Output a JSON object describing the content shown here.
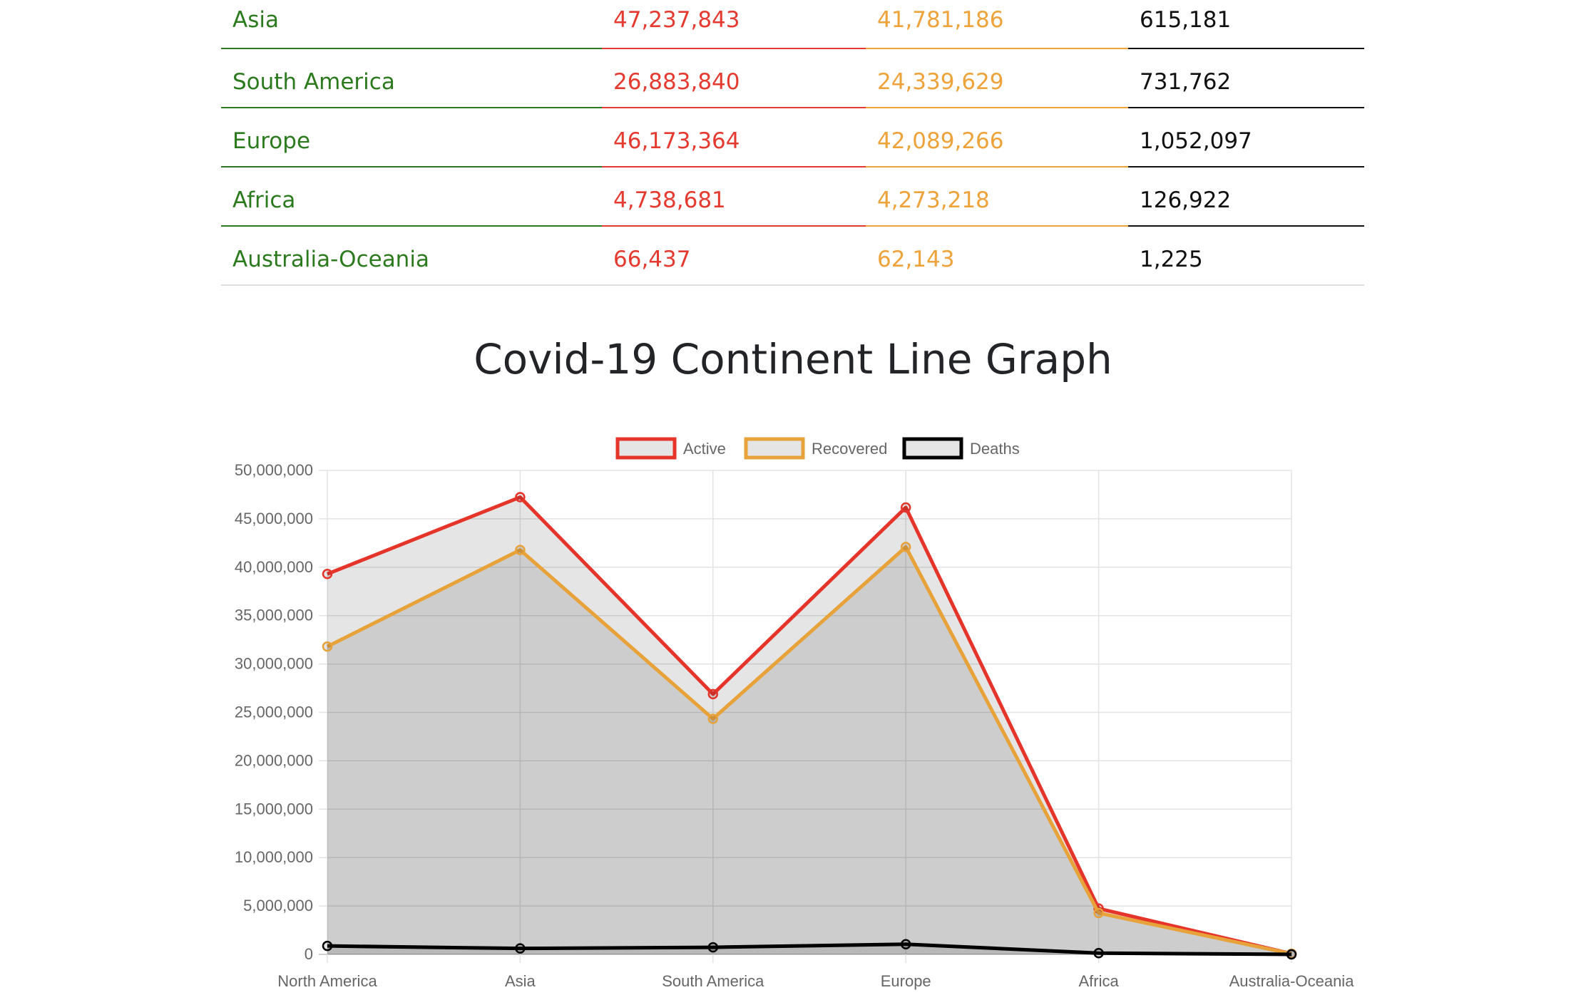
{
  "table": {
    "rows": [
      {
        "continent": "Asia",
        "active": "47,237,843",
        "recovered": "41,781,186",
        "deaths": "615,181"
      },
      {
        "continent": "South America",
        "active": "26,883,840",
        "recovered": "24,339,629",
        "deaths": "731,762"
      },
      {
        "continent": "Europe",
        "active": "46,173,364",
        "recovered": "42,089,266",
        "deaths": "1,052,097"
      },
      {
        "continent": "Africa",
        "active": "4,738,681",
        "recovered": "4,273,218",
        "deaths": "126,922"
      },
      {
        "continent": "Australia-Oceania",
        "active": "66,437",
        "recovered": "62,143",
        "deaths": "1,225"
      }
    ]
  },
  "chart_data": {
    "type": "line",
    "title": "Covid-19 Continent Line Graph",
    "categories": [
      "North America",
      "Asia",
      "South America",
      "Europe",
      "Africa",
      "Australia-Oceania"
    ],
    "series": [
      {
        "name": "Active",
        "color": "#e5352b",
        "values": [
          39300000,
          47237843,
          26883840,
          46173364,
          4738681,
          66437
        ]
      },
      {
        "name": "Recovered",
        "color": "#e8a23a",
        "values": [
          31800000,
          41781186,
          24339629,
          42089266,
          4273218,
          62143
        ]
      },
      {
        "name": "Deaths",
        "color": "#000000",
        "values": [
          870000,
          615181,
          731762,
          1052097,
          126922,
          1225
        ]
      }
    ],
    "ylim": [
      0,
      50000000
    ],
    "yticks": [
      "50,000,000",
      "45,000,000",
      "40,000,000",
      "35,000,000",
      "30,000,000",
      "25,000,000",
      "20,000,000",
      "15,000,000",
      "10,000,000",
      "5,000,000",
      "0"
    ],
    "legend": "top",
    "grid": true
  }
}
